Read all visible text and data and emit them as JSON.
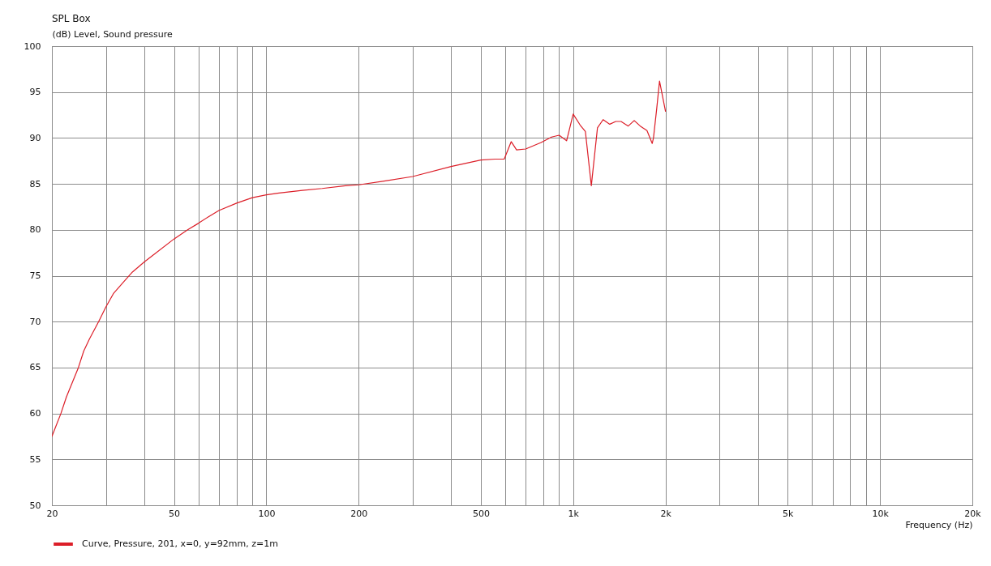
{
  "chart_data": {
    "type": "line",
    "title": "SPL Box",
    "ylabel": "(dB)  Level, Sound pressure",
    "xlabel": "Frequency  (Hz)",
    "log": "x",
    "grid": true,
    "legend": "bottom left",
    "line_style": "solid",
    "xlim": [
      20,
      20000
    ],
    "xticks": [
      20,
      {
        "value": 30,
        "label": null
      },
      {
        "value": 40,
        "label": null
      },
      50,
      {
        "value": 60,
        "label": null
      },
      {
        "value": 70,
        "label": null
      },
      {
        "value": 80,
        "label": null
      },
      {
        "value": 90,
        "label": null
      },
      100,
      200,
      {
        "value": 300,
        "label": null
      },
      {
        "value": 400,
        "label": null
      },
      500,
      {
        "value": 600,
        "label": null
      },
      {
        "value": 700,
        "label": null
      },
      {
        "value": 800,
        "label": null
      },
      {
        "value": 900,
        "label": null
      },
      {
        "value": 1000,
        "label": "1k"
      },
      {
        "value": 2000,
        "label": "2k"
      },
      {
        "value": 3000,
        "label": null
      },
      {
        "value": 4000,
        "label": null
      },
      {
        "value": 5000,
        "label": "5k"
      },
      {
        "value": 6000,
        "label": null
      },
      {
        "value": 7000,
        "label": null
      },
      {
        "value": 8000,
        "label": null
      },
      {
        "value": 9000,
        "label": null
      },
      {
        "value": 10000,
        "label": "10k"
      },
      {
        "value": 20000,
        "label": "20k"
      }
    ],
    "ylim": [
      50,
      100
    ],
    "yticks": [
      50,
      55,
      60,
      65,
      70,
      75,
      80,
      85,
      90,
      95,
      100
    ],
    "x": [
      20,
      21.4,
      22.3,
      24.4,
      25.4,
      26.5,
      28.4,
      30,
      31.8,
      34.4,
      36.6,
      40,
      42.6,
      50,
      55.4,
      60,
      64.6,
      70,
      80,
      90,
      100,
      110,
      131,
      152,
      181,
      200,
      242,
      300,
      400,
      500,
      556,
      596,
      628,
      654,
      700,
      786,
      850,
      900,
      952,
      1000,
      1054,
      1096,
      1146,
      1200,
      1252,
      1316,
      1377,
      1432,
      1512,
      1581,
      1654,
      1740,
      1810,
      1827,
      1872,
      1912,
      2000
    ],
    "series": [
      {
        "name": "Curve, Pressure, 201, x=0, y=92mm, z=1m",
        "color": "#dc1e28",
        "values": [
          57.5,
          60.0,
          61.8,
          65.0,
          66.8,
          68.1,
          70.0,
          71.6,
          73.1,
          74.4,
          75.4,
          76.5,
          77.2,
          79.0,
          80.0,
          80.7,
          81.4,
          82.1,
          82.9,
          83.5,
          83.8,
          84.0,
          84.3,
          84.5,
          84.8,
          84.9,
          85.3,
          85.8,
          86.9,
          87.6,
          87.7,
          87.7,
          89.6,
          88.7,
          88.8,
          89.5,
          90.1,
          90.3,
          89.7,
          92.6,
          91.4,
          90.7,
          84.8,
          91.1,
          92.0,
          91.5,
          91.8,
          91.8,
          91.3,
          91.9,
          91.3,
          90.8,
          89.4,
          90.0,
          93.2,
          96.2,
          92.9
        ]
      }
    ]
  }
}
